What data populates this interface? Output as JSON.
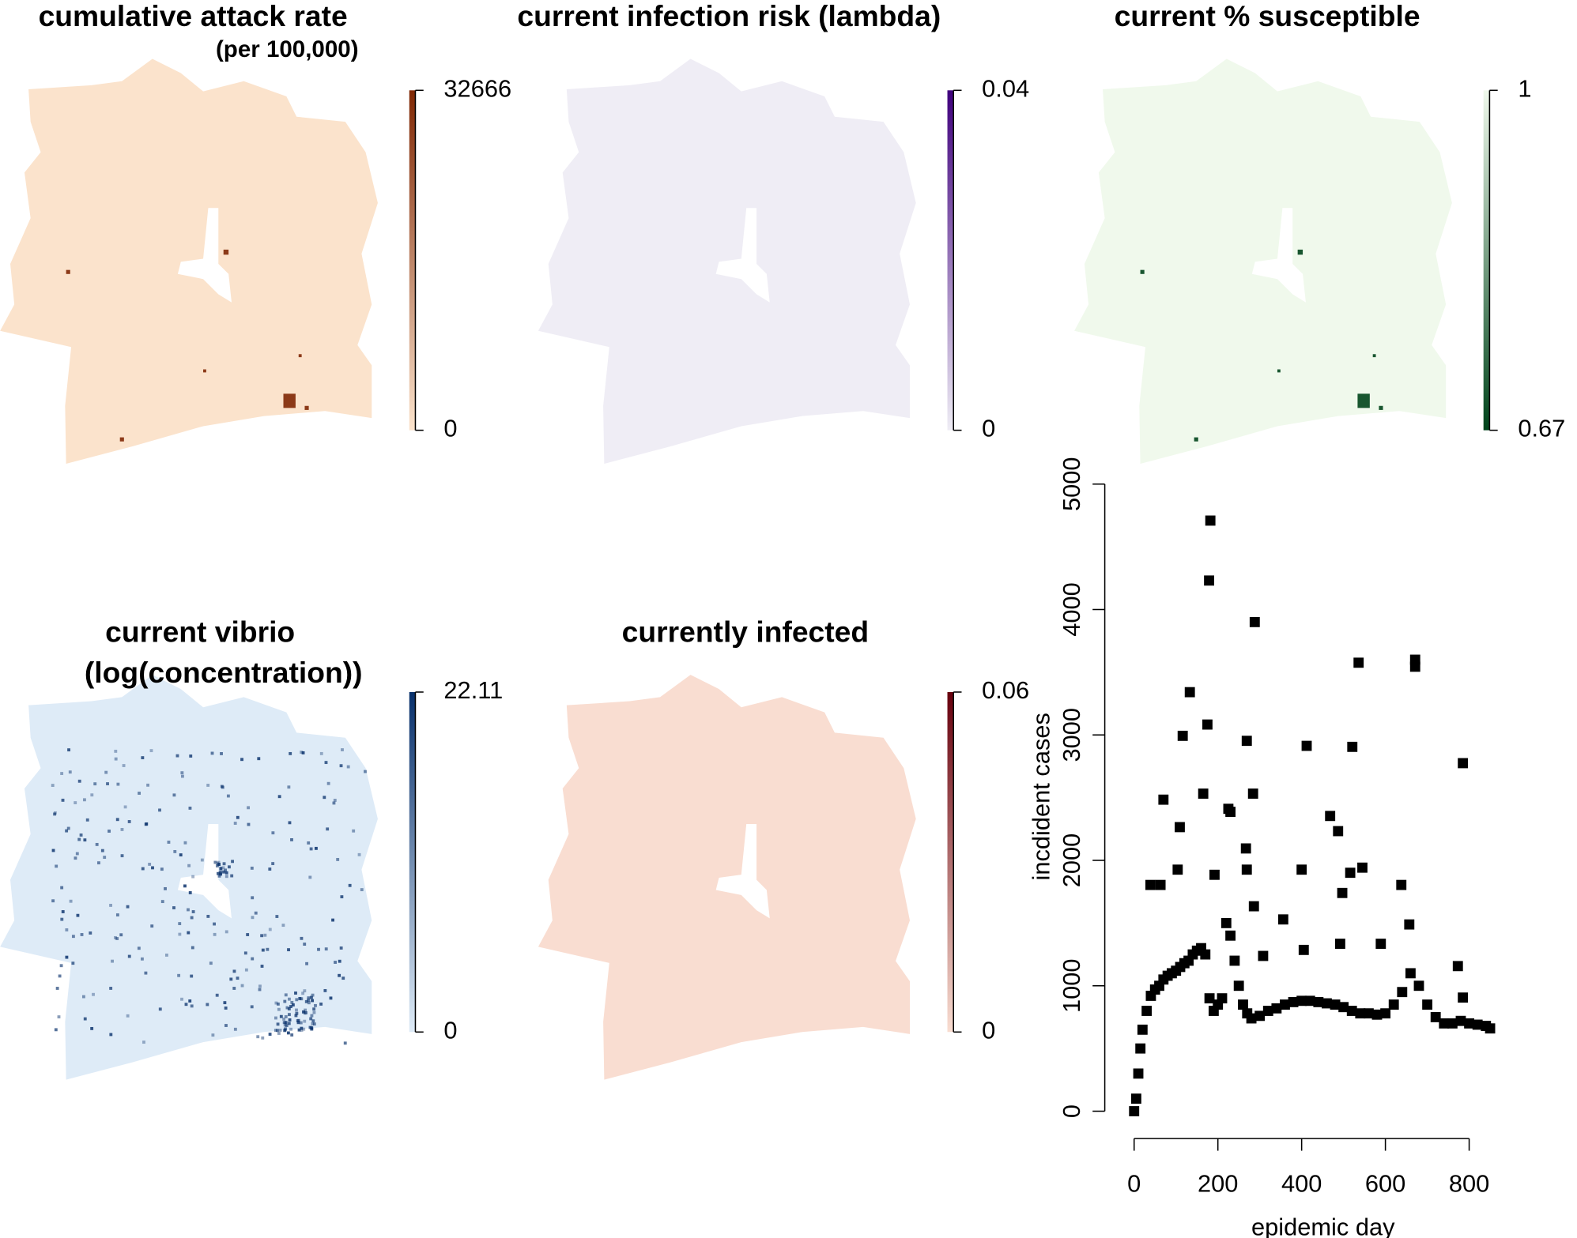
{
  "chart_data": [
    {
      "type": "map",
      "title": "cumulative attack rate",
      "subtitle": "(per 100,000)",
      "color_low": "#fbe3cc",
      "color_high": "#7f2704",
      "clim": [
        0,
        32666
      ],
      "cticks": [
        0,
        32666
      ]
    },
    {
      "type": "map",
      "title": "current infection risk (lambda)",
      "color_low": "#efedf5",
      "color_high": "#3f007d",
      "clim": [
        0,
        0.04
      ],
      "cticks": [
        0,
        0.04
      ]
    },
    {
      "type": "map",
      "title": "current % susceptible",
      "color_low": "#00441b",
      "color_high": "#f0f9ec",
      "clim": [
        0.67,
        1
      ],
      "cticks": [
        0.67,
        1
      ]
    },
    {
      "type": "map",
      "title": "current vibrio",
      "subtitle": "(log(concentration))",
      "color_low": "#deebf7",
      "color_high": "#08306b",
      "clim": [
        0,
        22.11
      ],
      "cticks": [
        0,
        22.11
      ]
    },
    {
      "type": "map",
      "title": "currently infected",
      "color_low": "#f9ddd1",
      "color_high": "#67000d",
      "clim": [
        0,
        0.06
      ],
      "cticks": [
        0,
        0.06
      ]
    },
    {
      "type": "scatter",
      "xlabel": "epidemic day",
      "ylabel": "incdident cases",
      "color": "#000000",
      "xlim": [
        -41,
        856
      ],
      "ylim": [
        -121,
        5138
      ],
      "xticks": [
        0,
        200,
        400,
        600,
        800
      ],
      "yticks": [
        0,
        1000,
        2000,
        3000,
        4000,
        5000
      ],
      "x": [
        0,
        5,
        10,
        15,
        20,
        30,
        40,
        50,
        60,
        70,
        80,
        90,
        100,
        110,
        120,
        130,
        140,
        150,
        160,
        170,
        180,
        190,
        200,
        210,
        220,
        230,
        240,
        250,
        260,
        270,
        280,
        300,
        320,
        340,
        360,
        380,
        400,
        420,
        440,
        460,
        480,
        500,
        520,
        540,
        560,
        580,
        600,
        620,
        640,
        660,
        680,
        700,
        720,
        740,
        760,
        780,
        800,
        820,
        840,
        850,
        182,
        179,
        288,
        133,
        175,
        116,
        269,
        412,
        521,
        536,
        671,
        671,
        785,
        70,
        165,
        284,
        109,
        487,
        468,
        225,
        230,
        267,
        269,
        400,
        192,
        39,
        63,
        104,
        516,
        545,
        638,
        497,
        657,
        356,
        405,
        308,
        492,
        286,
        589,
        773,
        785
      ],
      "values": [
        0,
        100,
        300,
        500,
        650,
        800,
        920,
        970,
        1000,
        1050,
        1080,
        1100,
        1120,
        1150,
        1180,
        1200,
        1250,
        1280,
        1300,
        1250,
        900,
        800,
        850,
        900,
        1500,
        1400,
        1200,
        1000,
        850,
        780,
        740,
        760,
        800,
        820,
        850,
        870,
        880,
        880,
        870,
        860,
        850,
        830,
        800,
        780,
        780,
        770,
        780,
        850,
        950,
        1100,
        1000,
        850,
        750,
        700,
        700,
        720,
        700,
        690,
        680,
        660,
        4709,
        4231,
        3900,
        3341,
        3083,
        2993,
        2953,
        2913,
        2905,
        3576,
        3600,
        3544,
        2775,
        2484,
        2532,
        2532,
        2265,
        2233,
        2354,
        2411,
        2387,
        2095,
        1926,
        1926,
        1885,
        1804,
        1804,
        1926,
        1901,
        1942,
        1804,
        1740,
        1489,
        1529,
        1286,
        1238,
        1335,
        1634,
        1335,
        1157,
        906
      ]
    }
  ]
}
